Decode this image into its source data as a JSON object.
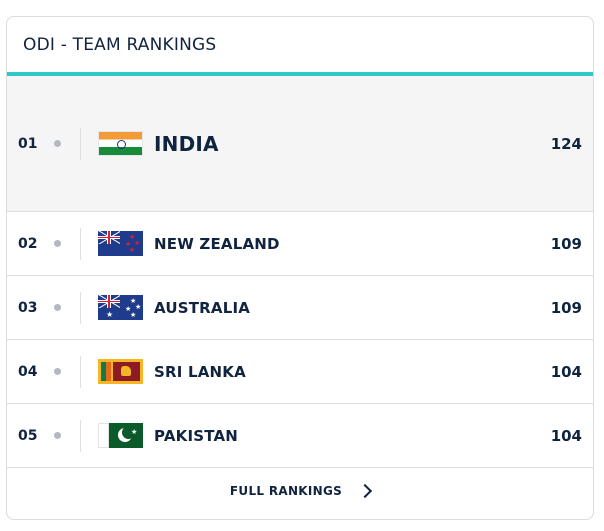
{
  "header": {
    "title": "ODI - TEAM RANKINGS"
  },
  "accent_color": "#2ec8c8",
  "rows": [
    {
      "rank": "01",
      "team": "INDIA",
      "points": "124",
      "flag_icon": "india-flag-icon"
    },
    {
      "rank": "02",
      "team": "NEW ZEALAND",
      "points": "109",
      "flag_icon": "new-zealand-flag-icon"
    },
    {
      "rank": "03",
      "team": "AUSTRALIA",
      "points": "109",
      "flag_icon": "australia-flag-icon"
    },
    {
      "rank": "04",
      "team": "SRI LANKA",
      "points": "104",
      "flag_icon": "sri-lanka-flag-icon"
    },
    {
      "rank": "05",
      "team": "PAKISTAN",
      "points": "104",
      "flag_icon": "pakistan-flag-icon"
    }
  ],
  "footer": {
    "link_label": "FULL RANKINGS"
  }
}
